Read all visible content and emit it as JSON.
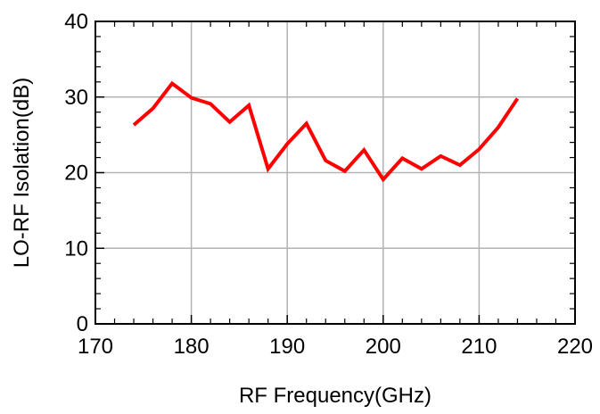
{
  "chart_data": {
    "type": "line",
    "title": "",
    "xlabel": "RF Frequency(GHz)",
    "ylabel": "LO-RF Isolation(dB)",
    "xlim": [
      170,
      220
    ],
    "ylim": [
      0,
      40
    ],
    "x_ticks": [
      170,
      180,
      190,
      200,
      210,
      220
    ],
    "y_ticks": [
      0,
      10,
      20,
      30,
      40
    ],
    "grid": true,
    "legend": "none",
    "series": [
      {
        "color": "#ff0000",
        "x": [
          174,
          176,
          178,
          180,
          182,
          184,
          186,
          188,
          190,
          192,
          194,
          196,
          198,
          200,
          202,
          204,
          206,
          208,
          210,
          212,
          214
        ],
        "y": [
          26.3,
          28.5,
          31.8,
          29.9,
          29.1,
          26.7,
          28.9,
          20.5,
          23.8,
          26.5,
          21.6,
          20.2,
          23.0,
          19.1,
          21.9,
          20.5,
          22.2,
          21.0,
          23.1,
          26.0,
          29.8
        ]
      }
    ]
  }
}
